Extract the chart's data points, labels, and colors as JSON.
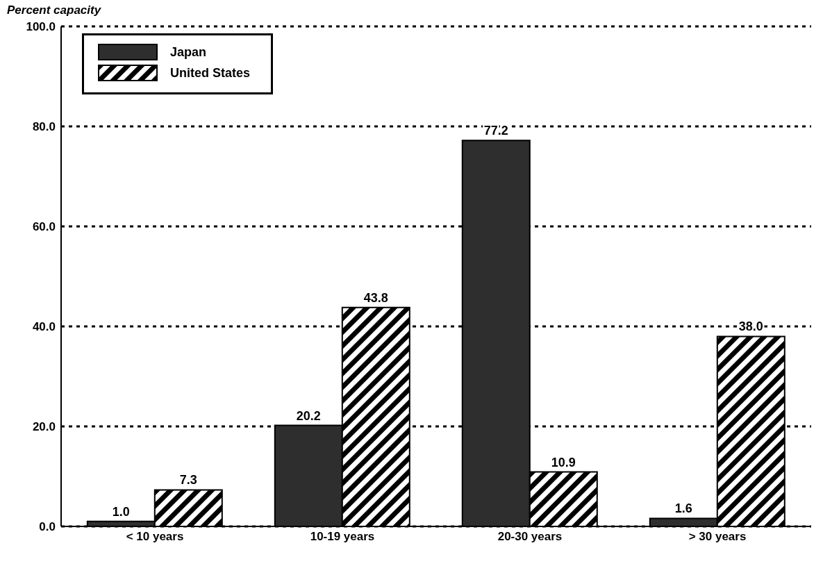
{
  "chart_data": {
    "type": "bar",
    "ylabel": "Percent capacity",
    "categories": [
      "< 10 years",
      "10-19 years",
      "20-30 years",
      "> 30 years"
    ],
    "series": [
      {
        "name": "Japan",
        "color": "#2e2e2e",
        "values": [
          1.0,
          20.2,
          77.2,
          1.6
        ],
        "value_labels": [
          "1.0",
          "20.2",
          "77.2",
          "1.6"
        ]
      },
      {
        "name": "United States",
        "color": "#000000",
        "values": [
          7.3,
          43.8,
          10.9,
          38.0
        ],
        "value_labels": [
          "7.3",
          "43.8",
          "10.9",
          "38.0"
        ]
      }
    ],
    "ylim": [
      0,
      100
    ],
    "yticks": [
      {
        "value": 0,
        "label": "0.0"
      },
      {
        "value": 20,
        "label": "20.0"
      },
      {
        "value": 40,
        "label": "40.0"
      },
      {
        "value": 60,
        "label": "60.0"
      },
      {
        "value": 80,
        "label": "80.0"
      },
      {
        "value": 100,
        "label": "100.0"
      }
    ],
    "grid": "y",
    "line_style": "dotted",
    "legend": "top left"
  }
}
